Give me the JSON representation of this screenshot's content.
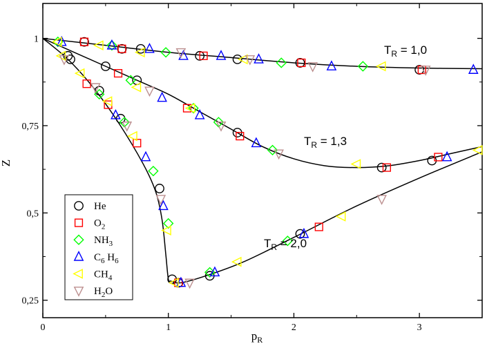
{
  "chart_data": {
    "type": "scatter",
    "xlabel": {
      "main": "p",
      "sub": "R"
    },
    "ylabel": "Z",
    "xlim": [
      0,
      3.5
    ],
    "ylim": [
      0.2,
      1.1
    ],
    "x_ticks": [
      {
        "v": 0,
        "label": "0"
      },
      {
        "v": 1,
        "label": "1"
      },
      {
        "v": 2,
        "label": "2"
      },
      {
        "v": 3,
        "label": "3"
      }
    ],
    "y_ticks": [
      {
        "v": 0.25,
        "label": "0,25"
      },
      {
        "v": 0.5,
        "label": "0,5"
      },
      {
        "v": 0.75,
        "label": "0,75"
      },
      {
        "v": 1.0,
        "label": "1"
      }
    ],
    "grid": false,
    "legend_position": "bottom-left",
    "curves": [
      {
        "name": "T_R = 1,0",
        "label_main": "T",
        "label_sub": "R",
        "label_rest": " = 1,0",
        "x": [
          0,
          0.5,
          1.0,
          1.5,
          2.0,
          2.5,
          3.0,
          3.5
        ],
        "y": [
          1.0,
          0.98,
          0.96,
          0.945,
          0.93,
          0.92,
          0.915,
          0.913
        ]
      },
      {
        "name": "T_R = 1,3",
        "label_main": "T",
        "label_sub": "R",
        "label_rest": " = 1,3",
        "x": [
          0,
          0.25,
          0.5,
          0.75,
          1.0,
          1.25,
          1.5,
          1.75,
          2.0,
          2.25,
          2.5,
          2.75,
          3.0,
          3.25,
          3.5
        ],
        "y": [
          1.0,
          0.96,
          0.92,
          0.88,
          0.84,
          0.79,
          0.74,
          0.69,
          0.655,
          0.635,
          0.63,
          0.635,
          0.65,
          0.67,
          0.69
        ]
      },
      {
        "name": "T_R = 2,0",
        "label_main": "T",
        "label_sub": "R",
        "label_rest": " = 2,0",
        "x": [
          0,
          0.2,
          0.4,
          0.6,
          0.8,
          0.9,
          0.95,
          0.98,
          1.0,
          1.02,
          1.1,
          1.3,
          1.6,
          2.0,
          2.5,
          3.0,
          3.5
        ],
        "y": [
          1.0,
          0.94,
          0.86,
          0.76,
          0.64,
          0.56,
          0.48,
          0.38,
          0.31,
          0.305,
          0.3,
          0.32,
          0.36,
          0.43,
          0.52,
          0.6,
          0.675
        ]
      }
    ],
    "series": [
      {
        "name": "He",
        "marker": "circle",
        "color": "#000000",
        "x": [
          0.33,
          0.63,
          0.78,
          1.25,
          1.55,
          2.05,
          3.0,
          0.2,
          0.5,
          0.75,
          1.55,
          2.7,
          3.1,
          0.22,
          0.45,
          0.62,
          0.93,
          1.03,
          1.08,
          1.33,
          2.05
        ],
        "y": [
          0.99,
          0.97,
          0.97,
          0.95,
          0.94,
          0.93,
          0.91,
          0.95,
          0.92,
          0.88,
          0.73,
          0.63,
          0.65,
          0.94,
          0.85,
          0.77,
          0.57,
          0.31,
          0.3,
          0.32,
          0.44
        ]
      },
      {
        "name": "O2",
        "label_main": "O",
        "label_sub": "2",
        "marker": "square",
        "color": "#ff0000",
        "x": [
          0.33,
          0.63,
          1.28,
          2.06,
          3.02,
          0.6,
          1.15,
          1.57,
          2.74,
          3.15,
          0.35,
          0.52,
          0.75,
          1.08,
          2.2
        ],
        "y": [
          0.99,
          0.97,
          0.95,
          0.93,
          0.91,
          0.9,
          0.8,
          0.72,
          0.63,
          0.66,
          0.87,
          0.81,
          0.7,
          0.3,
          0.46
        ]
      },
      {
        "name": "NH3",
        "label_main": "NH",
        "label_sub": "3",
        "marker": "diamond",
        "color": "#00ff00",
        "x": [
          0.12,
          0.55,
          0.98,
          1.9,
          2.55,
          0.7,
          1.2,
          1.4,
          1.83,
          0.45,
          0.65,
          0.88,
          1.0,
          1.33,
          1.95
        ],
        "y": [
          0.99,
          0.98,
          0.96,
          0.93,
          0.92,
          0.88,
          0.8,
          0.76,
          0.68,
          0.84,
          0.76,
          0.62,
          0.47,
          0.33,
          0.42
        ]
      },
      {
        "name": "C6H6",
        "label_main": "C",
        "label_sub": "6",
        "label_main2": " H",
        "label_sub2": "6",
        "marker": "triangle-up",
        "color": "#0000ff",
        "x": [
          0.15,
          0.55,
          0.85,
          1.12,
          1.42,
          1.72,
          2.3,
          3.43,
          0.95,
          1.25,
          1.7,
          3.22,
          0.58,
          0.82,
          0.96,
          1.1,
          1.37,
          2.08
        ],
        "y": [
          0.99,
          0.98,
          0.97,
          0.95,
          0.95,
          0.94,
          0.92,
          0.91,
          0.83,
          0.78,
          0.7,
          0.66,
          0.78,
          0.66,
          0.52,
          0.3,
          0.33,
          0.44
        ]
      },
      {
        "name": "CH4",
        "label_main": "CH",
        "label_sub": "4",
        "marker": "triangle-left",
        "color": "#ffff00",
        "x": [
          0.12,
          0.45,
          0.78,
          1.6,
          2.7,
          0.15,
          0.75,
          1.18,
          2.5,
          3.47,
          0.3,
          0.52,
          0.72,
          0.99,
          1.05,
          1.55,
          2.38
        ],
        "y": [
          0.99,
          0.98,
          0.96,
          0.94,
          0.92,
          0.95,
          0.86,
          0.8,
          0.64,
          0.68,
          0.9,
          0.82,
          0.72,
          0.45,
          0.3,
          0.36,
          0.49
        ]
      },
      {
        "name": "H2O",
        "label_main": "H",
        "label_sub": "2",
        "label_rest": "O",
        "marker": "triangle-down",
        "color": "#bc8f8f",
        "x": [
          1.1,
          1.65,
          2.15,
          3.05,
          0.85,
          1.42,
          1.88,
          0.17,
          0.42,
          0.67,
          0.94,
          1.17,
          2.7
        ],
        "y": [
          0.96,
          0.94,
          0.92,
          0.91,
          0.85,
          0.75,
          0.67,
          0.94,
          0.86,
          0.75,
          0.54,
          0.3,
          0.54
        ]
      }
    ]
  }
}
